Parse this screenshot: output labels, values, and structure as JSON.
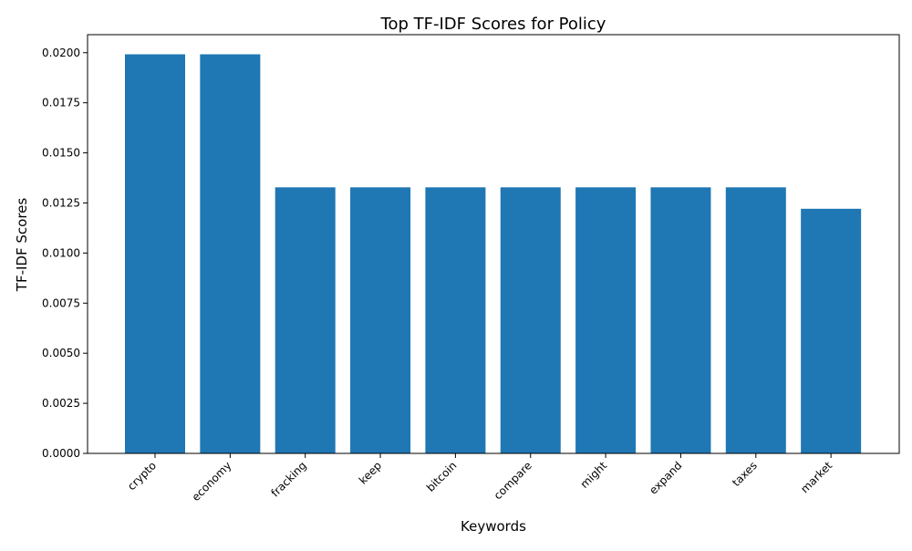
{
  "chart_data": {
    "type": "bar",
    "title": "Top TF-IDF Scores for Policy",
    "xlabel": "Keywords",
    "ylabel": "TF-IDF Scores",
    "categories": [
      "crypto",
      "economy",
      "fracking",
      "keep",
      "bitcoin",
      "compare",
      "might",
      "expand",
      "taxes",
      "market"
    ],
    "values": [
      0.01992,
      0.01992,
      0.01328,
      0.01328,
      0.01328,
      0.01328,
      0.01328,
      0.01328,
      0.01328,
      0.01221
    ],
    "ylim": [
      0,
      0.0209
    ],
    "yticks": [
      "0.0000",
      "0.0025",
      "0.0050",
      "0.0075",
      "0.0100",
      "0.0125",
      "0.0150",
      "0.0175",
      "0.0200"
    ],
    "ytick_values": [
      0,
      0.0025,
      0.005,
      0.0075,
      0.01,
      0.0125,
      0.015,
      0.0175,
      0.02
    ],
    "grid": false,
    "legend": "none",
    "bar_color": "#1f77b4"
  }
}
